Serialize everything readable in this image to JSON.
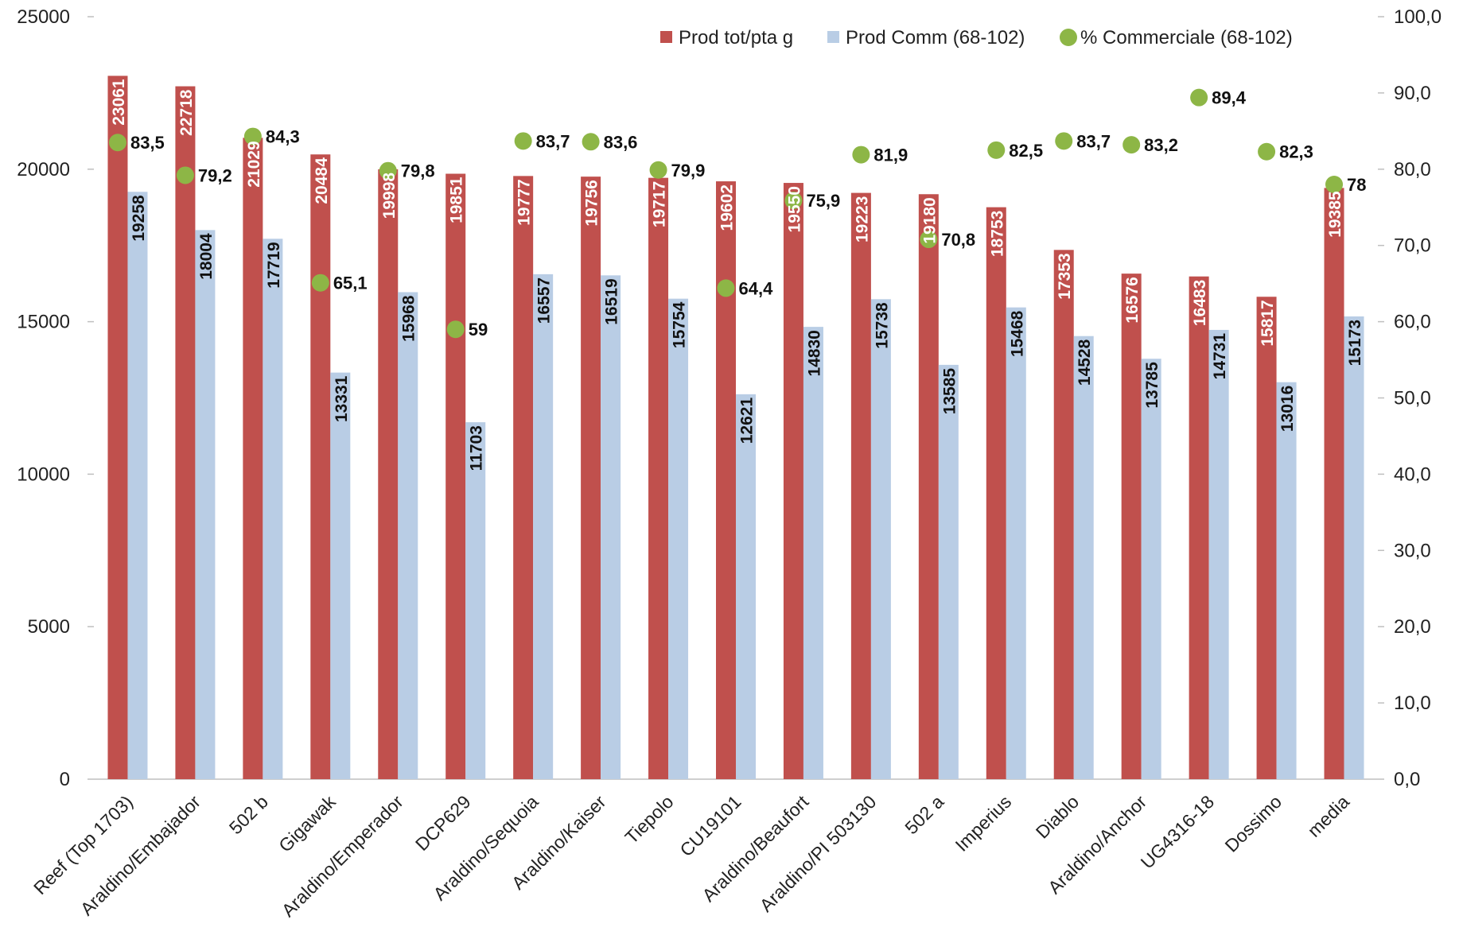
{
  "chart_data": {
    "type": "bar",
    "title": "",
    "xlabel": "",
    "ylabel": "",
    "categories": [
      "Reef (Top 1703)",
      "Araldino/Embajador",
      "502 b",
      "Gigawak",
      "Araldino/Emperador",
      "DCP629",
      "Araldino/Sequoia",
      "Araldino/Kaiser",
      "Tiepolo",
      "CU19101",
      "Araldino/Beaufort",
      "Araldino/PI 503130",
      "502 a",
      "Imperius",
      "Diablo",
      "Araldino/Anchor",
      "UG4316-18",
      "Dossimo",
      "media"
    ],
    "series": [
      {
        "name": "Prod tot/pta g",
        "type": "bar",
        "axis": "left",
        "color": "#C0504D",
        "values": [
          23061,
          22718,
          21029,
          20484,
          19998,
          19851,
          19777,
          19756,
          19717,
          19602,
          19550,
          19223,
          19180,
          18753,
          17353,
          16576,
          16483,
          15817,
          19385
        ],
        "labels": [
          "23061",
          "22718",
          "21029",
          "20484",
          "19998",
          "19851",
          "19777",
          "19756",
          "19717",
          "19602",
          "19550",
          "19223",
          "19180",
          "18753",
          "17353",
          "16576",
          "16483",
          "15817",
          "19385"
        ]
      },
      {
        "name": "Prod Comm (68-102)",
        "type": "bar",
        "axis": "left",
        "color": "#B9CDE5",
        "values": [
          19258,
          18004,
          17719,
          13331,
          15968,
          11703,
          16557,
          16519,
          15754,
          12621,
          14830,
          15738,
          13585,
          15468,
          14528,
          13785,
          14731,
          13016,
          15173
        ],
        "labels": [
          "19258",
          "18004",
          "17719",
          "13331",
          "15968",
          "11703",
          "16557",
          "16519",
          "15754",
          "12621",
          "14830",
          "15738",
          "13585",
          "15468",
          "14528",
          "13785",
          "14731",
          "13016",
          "15173"
        ]
      },
      {
        "name": "% Commerciale (68-102)",
        "type": "scatter",
        "axis": "right",
        "color": "#8DB646",
        "values": [
          83.5,
          79.2,
          84.3,
          65.1,
          79.8,
          59,
          83.7,
          83.6,
          79.9,
          64.4,
          75.9,
          81.9,
          70.8,
          82.5,
          83.7,
          83.2,
          89.4,
          82.3,
          78
        ],
        "labels": [
          "83,5",
          "79,2",
          "84,3",
          "65,1",
          "79,8",
          "59",
          "83,7",
          "83,6",
          "79,9",
          "64,4",
          "75,9",
          "81,9",
          "70,8",
          "82,5",
          "83,7",
          "83,2",
          "89,4",
          "82,3",
          "78"
        ]
      }
    ],
    "y_left": {
      "range": [
        0,
        25000
      ],
      "ticks": [
        0,
        5000,
        10000,
        15000,
        20000,
        25000
      ],
      "tick_labels": [
        "0",
        "5000",
        "10000",
        "15000",
        "20000",
        "25000"
      ]
    },
    "y_right": {
      "range": [
        0,
        100
      ],
      "ticks": [
        0,
        10,
        20,
        30,
        40,
        50,
        60,
        70,
        80,
        90,
        100
      ],
      "tick_labels": [
        "0,0",
        "10,0",
        "20,0",
        "30,0",
        "40,0",
        "50,0",
        "60,0",
        "70,0",
        "80,0",
        "90,0",
        "100,0"
      ]
    },
    "grid": false,
    "legend": {
      "position": "top-right",
      "entries": [
        "Prod tot/pta g",
        "Prod Comm (68-102)",
        "% Commerciale (68-102)"
      ]
    }
  }
}
